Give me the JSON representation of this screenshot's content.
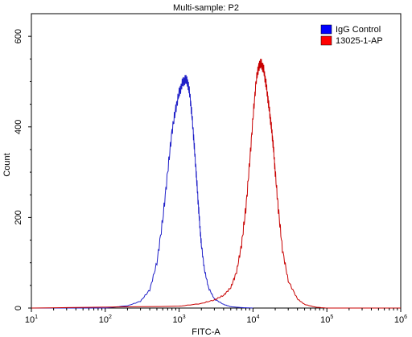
{
  "chart_data": {
    "type": "line",
    "title": "Multi-sample: P2",
    "xlabel": "FITC-A",
    "ylabel": "Count",
    "x_scale": "log",
    "xlim": [
      10,
      1000000
    ],
    "ylim": [
      0,
      650
    ],
    "y_ticks": [
      "0",
      "200",
      "400",
      "600"
    ],
    "x_ticks": [
      {
        "base": "10",
        "exp": "1"
      },
      {
        "base": "10",
        "exp": "2"
      },
      {
        "base": "10",
        "exp": "3"
      },
      {
        "base": "10",
        "exp": "4"
      },
      {
        "base": "10",
        "exp": "5"
      },
      {
        "base": "10",
        "exp": "6"
      }
    ],
    "grid": false,
    "legend_position": "top-right",
    "series": [
      {
        "name": "IgG Control",
        "color": "#1f1fc8",
        "legend_color": "#0000ff",
        "x": [
          10,
          100,
          200,
          300,
          400,
          500,
          600,
          700,
          800,
          900,
          1000,
          1100,
          1200,
          1300,
          1400,
          1500,
          1600,
          1700,
          1800,
          1900,
          2000,
          2200,
          2500,
          3000,
          4000,
          5000,
          7000,
          10000
        ],
        "y": [
          0,
          0,
          5,
          15,
          40,
          100,
          195,
          300,
          390,
          440,
          475,
          495,
          505,
          500,
          470,
          420,
          360,
          300,
          240,
          185,
          140,
          85,
          45,
          20,
          8,
          3,
          1,
          0
        ]
      },
      {
        "name": "13025-1-AP",
        "color": "#c80000",
        "legend_color": "#ff0000",
        "x": [
          10,
          1000,
          2000,
          3000,
          4000,
          5000,
          6000,
          7000,
          8000,
          9000,
          10000,
          11000,
          12000,
          13000,
          14000,
          15000,
          16000,
          17000,
          18000,
          19000,
          20000,
          22000,
          25000,
          30000,
          40000,
          50000,
          70000,
          100000,
          1000000
        ],
        "y": [
          0,
          4,
          10,
          18,
          28,
          45,
          80,
          140,
          220,
          320,
          420,
          500,
          535,
          540,
          525,
          495,
          460,
          425,
          390,
          350,
          300,
          220,
          130,
          60,
          20,
          8,
          2,
          0,
          0
        ]
      }
    ]
  }
}
